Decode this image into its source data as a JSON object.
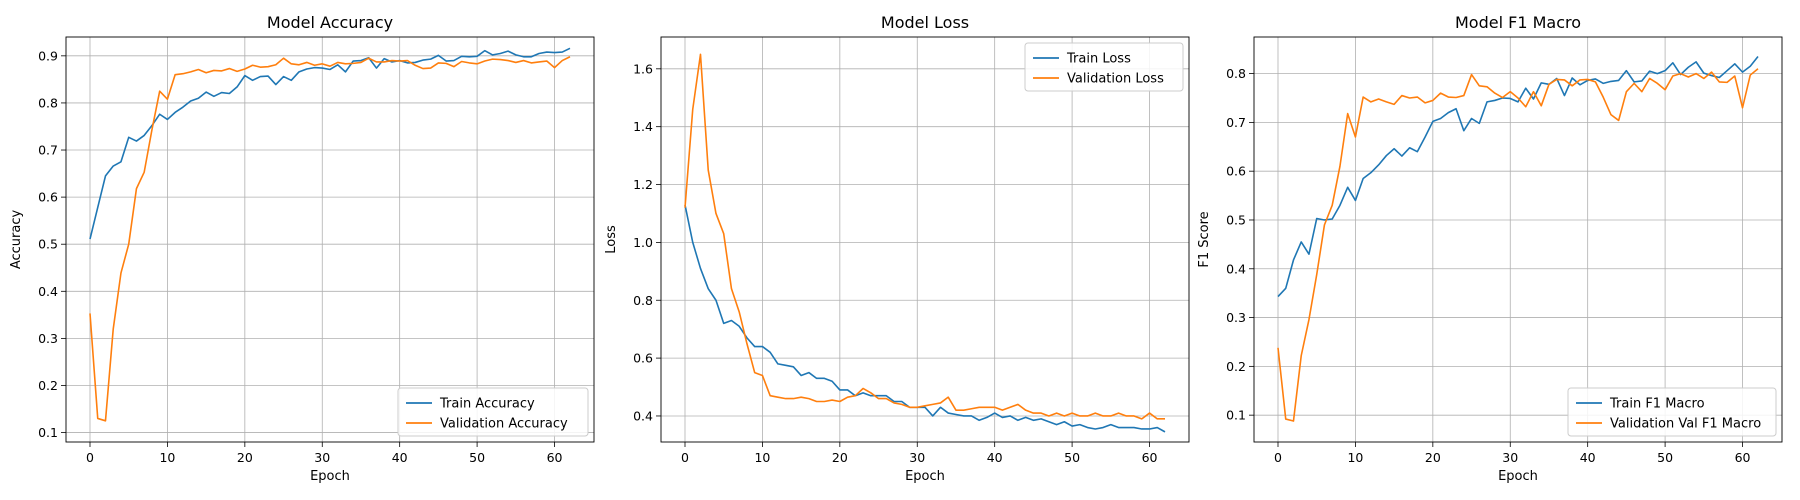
{
  "colors": {
    "train": "#1f77b4",
    "validation": "#ff7f0e",
    "grid": "#b0b0b0"
  },
  "chart_data": [
    {
      "type": "line",
      "title": "Model Accuracy",
      "xlabel": "Epoch",
      "ylabel": "Accuracy",
      "xlim": [
        -3.1,
        65.1
      ],
      "ylim": [
        0.08,
        0.94
      ],
      "xticks": [
        0,
        10,
        20,
        30,
        40,
        50,
        60
      ],
      "yticks": [
        0.1,
        0.2,
        0.3,
        0.4,
        0.5,
        0.6,
        0.7,
        0.8,
        0.9
      ],
      "grid": true,
      "legend_position": "lower-right",
      "x": [
        0,
        1,
        2,
        3,
        4,
        5,
        6,
        7,
        8,
        9,
        10,
        11,
        12,
        13,
        14,
        15,
        16,
        17,
        18,
        19,
        20,
        21,
        22,
        23,
        24,
        25,
        26,
        27,
        28,
        29,
        30,
        31,
        32,
        33,
        34,
        35,
        36,
        37,
        38,
        39,
        40,
        41,
        42,
        43,
        44,
        45,
        46,
        47,
        48,
        49,
        50,
        51,
        52,
        53,
        54,
        55,
        56,
        57,
        58,
        59,
        60,
        61,
        62
      ],
      "series": [
        {
          "name": "Train Accuracy",
          "values": [
            0.511,
            0.578,
            0.645,
            0.666,
            0.675,
            0.727,
            0.719,
            0.731,
            0.752,
            0.776,
            0.765,
            0.78,
            0.791,
            0.804,
            0.81,
            0.823,
            0.814,
            0.822,
            0.82,
            0.834,
            0.858,
            0.848,
            0.856,
            0.857,
            0.839,
            0.856,
            0.848,
            0.866,
            0.872,
            0.875,
            0.874,
            0.871,
            0.881,
            0.866,
            0.889,
            0.89,
            0.896,
            0.874,
            0.894,
            0.887,
            0.89,
            0.885,
            0.886,
            0.891,
            0.893,
            0.901,
            0.889,
            0.89,
            0.899,
            0.898,
            0.899,
            0.911,
            0.902,
            0.905,
            0.91,
            0.902,
            0.898,
            0.898,
            0.905,
            0.908,
            0.907,
            0.908,
            0.916
          ]
        },
        {
          "name": "Validation Accuracy",
          "values": [
            0.353,
            0.13,
            0.125,
            0.32,
            0.439,
            0.5,
            0.618,
            0.653,
            0.743,
            0.825,
            0.808,
            0.86,
            0.862,
            0.866,
            0.871,
            0.864,
            0.869,
            0.868,
            0.873,
            0.867,
            0.872,
            0.88,
            0.876,
            0.877,
            0.881,
            0.895,
            0.883,
            0.881,
            0.886,
            0.88,
            0.883,
            0.878,
            0.886,
            0.883,
            0.884,
            0.886,
            0.895,
            0.887,
            0.887,
            0.89,
            0.889,
            0.89,
            0.88,
            0.873,
            0.874,
            0.885,
            0.884,
            0.877,
            0.888,
            0.885,
            0.883,
            0.889,
            0.893,
            0.892,
            0.89,
            0.886,
            0.89,
            0.885,
            0.887,
            0.889,
            0.875,
            0.89,
            0.898
          ]
        }
      ]
    },
    {
      "type": "line",
      "title": "Model Loss",
      "xlabel": "Epoch",
      "ylabel": "Loss",
      "xlim": [
        -3.1,
        65.1
      ],
      "ylim": [
        0.31,
        1.71
      ],
      "xticks": [
        0,
        10,
        20,
        30,
        40,
        50,
        60
      ],
      "yticks": [
        0.4,
        0.6,
        0.8,
        1.0,
        1.2,
        1.4,
        1.6
      ],
      "grid": true,
      "legend_position": "upper-right",
      "x": [
        0,
        1,
        2,
        3,
        4,
        5,
        6,
        7,
        8,
        9,
        10,
        11,
        12,
        13,
        14,
        15,
        16,
        17,
        18,
        19,
        20,
        21,
        22,
        23,
        24,
        25,
        26,
        27,
        28,
        29,
        30,
        31,
        32,
        33,
        34,
        35,
        36,
        37,
        38,
        39,
        40,
        41,
        42,
        43,
        44,
        45,
        46,
        47,
        48,
        49,
        50,
        51,
        52,
        53,
        54,
        55,
        56,
        57,
        58,
        59,
        60,
        61,
        62
      ],
      "series": [
        {
          "name": "Train Loss",
          "values": [
            1.13,
            1.0,
            0.91,
            0.84,
            0.8,
            0.72,
            0.73,
            0.71,
            0.67,
            0.64,
            0.64,
            0.62,
            0.58,
            0.575,
            0.57,
            0.54,
            0.55,
            0.53,
            0.53,
            0.52,
            0.49,
            0.49,
            0.47,
            0.48,
            0.47,
            0.47,
            0.47,
            0.45,
            0.45,
            0.43,
            0.43,
            0.43,
            0.4,
            0.43,
            0.41,
            0.405,
            0.4,
            0.4,
            0.385,
            0.395,
            0.41,
            0.395,
            0.4,
            0.385,
            0.395,
            0.385,
            0.39,
            0.38,
            0.37,
            0.38,
            0.365,
            0.37,
            0.36,
            0.355,
            0.36,
            0.37,
            0.36,
            0.36,
            0.36,
            0.355,
            0.355,
            0.36,
            0.345
          ]
        },
        {
          "name": "Validation Loss",
          "values": [
            1.12,
            1.46,
            1.65,
            1.25,
            1.1,
            1.03,
            0.84,
            0.76,
            0.65,
            0.55,
            0.54,
            0.47,
            0.465,
            0.46,
            0.46,
            0.465,
            0.46,
            0.45,
            0.45,
            0.455,
            0.45,
            0.465,
            0.47,
            0.495,
            0.48,
            0.46,
            0.46,
            0.445,
            0.44,
            0.43,
            0.43,
            0.435,
            0.44,
            0.445,
            0.465,
            0.42,
            0.42,
            0.425,
            0.43,
            0.43,
            0.43,
            0.42,
            0.43,
            0.44,
            0.42,
            0.41,
            0.41,
            0.4,
            0.41,
            0.4,
            0.41,
            0.4,
            0.4,
            0.41,
            0.4,
            0.4,
            0.41,
            0.4,
            0.4,
            0.39,
            0.41,
            0.39,
            0.39
          ]
        }
      ]
    },
    {
      "type": "line",
      "title": "Model F1 Macro",
      "xlabel": "Epoch",
      "ylabel": "F1 Score",
      "xlim": [
        -3.1,
        65.1
      ],
      "ylim": [
        0.045,
        0.875
      ],
      "xticks": [
        0,
        10,
        20,
        30,
        40,
        50,
        60
      ],
      "yticks": [
        0.1,
        0.2,
        0.3,
        0.4,
        0.5,
        0.6,
        0.7,
        0.8
      ],
      "grid": true,
      "legend_position": "lower-right",
      "x": [
        0,
        1,
        2,
        3,
        4,
        5,
        6,
        7,
        8,
        9,
        10,
        11,
        12,
        13,
        14,
        15,
        16,
        17,
        18,
        19,
        20,
        21,
        22,
        23,
        24,
        25,
        26,
        27,
        28,
        29,
        30,
        31,
        32,
        33,
        34,
        35,
        36,
        37,
        38,
        39,
        40,
        41,
        42,
        43,
        44,
        45,
        46,
        47,
        48,
        49,
        50,
        51,
        52,
        53,
        54,
        55,
        56,
        57,
        58,
        59,
        60,
        61,
        62
      ],
      "series": [
        {
          "name": "Train F1 Macro",
          "values": [
            0.343,
            0.36,
            0.418,
            0.455,
            0.43,
            0.503,
            0.5,
            0.502,
            0.53,
            0.567,
            0.54,
            0.585,
            0.597,
            0.613,
            0.632,
            0.646,
            0.631,
            0.648,
            0.64,
            0.67,
            0.702,
            0.708,
            0.72,
            0.728,
            0.683,
            0.708,
            0.698,
            0.742,
            0.745,
            0.75,
            0.749,
            0.742,
            0.77,
            0.748,
            0.781,
            0.778,
            0.79,
            0.755,
            0.791,
            0.777,
            0.786,
            0.789,
            0.78,
            0.784,
            0.786,
            0.806,
            0.783,
            0.785,
            0.805,
            0.8,
            0.806,
            0.822,
            0.798,
            0.813,
            0.824,
            0.801,
            0.796,
            0.792,
            0.806,
            0.82,
            0.803,
            0.815,
            0.835
          ]
        },
        {
          "name": "Validation Val F1 Macro",
          "values": [
            0.238,
            0.092,
            0.088,
            0.222,
            0.296,
            0.388,
            0.49,
            0.53,
            0.61,
            0.718,
            0.67,
            0.752,
            0.742,
            0.748,
            0.742,
            0.737,
            0.755,
            0.75,
            0.752,
            0.74,
            0.745,
            0.76,
            0.752,
            0.751,
            0.755,
            0.798,
            0.775,
            0.773,
            0.76,
            0.751,
            0.763,
            0.75,
            0.732,
            0.763,
            0.734,
            0.778,
            0.788,
            0.787,
            0.775,
            0.787,
            0.788,
            0.783,
            0.752,
            0.716,
            0.704,
            0.763,
            0.78,
            0.763,
            0.79,
            0.78,
            0.767,
            0.795,
            0.8,
            0.793,
            0.8,
            0.79,
            0.803,
            0.783,
            0.782,
            0.795,
            0.73,
            0.797,
            0.81
          ]
        }
      ]
    }
  ]
}
